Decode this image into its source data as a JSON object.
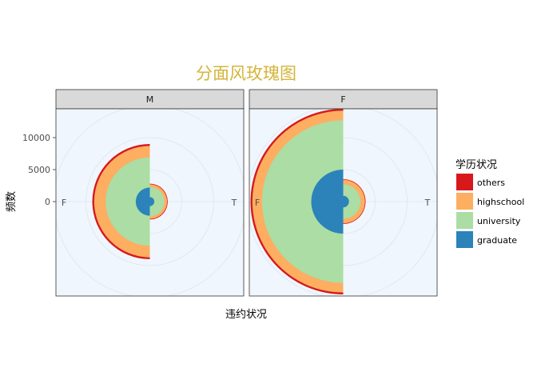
{
  "chart_data": {
    "type": "rose",
    "title": "分面风玫瑰图",
    "xlabel": "违约状况",
    "ylabel": "频数",
    "y_ticks": [
      0,
      5000,
      10000
    ],
    "x_categories": [
      "F",
      "T"
    ],
    "facets": [
      "M",
      "F"
    ],
    "legend": {
      "title": "学历状况",
      "position": "right",
      "entries": [
        "others",
        "highschool",
        "university",
        "graduate"
      ]
    },
    "series_colors": {
      "others": "#d7191c",
      "highschool": "#fdae61",
      "university": "#abdda4",
      "graduate": "#2b83ba"
    },
    "data": {
      "M": {
        "F": {
          "graduate": 2200,
          "university": 6900,
          "highschool": 8700,
          "others": 9000
        },
        "T": {
          "graduate": 700,
          "university": 2300,
          "highschool": 2700,
          "others": 2800
        }
      },
      "F": {
        "F": {
          "graduate": 5000,
          "university": 12700,
          "highschool": 14200,
          "others": 14500
        },
        "T": {
          "graduate": 900,
          "university": 2700,
          "highschool": 3400,
          "others": 3500
        }
      }
    },
    "grid": true,
    "panel_background": "#f0f6fd",
    "strip_background": "#d9d9d9",
    "title_color": "#d4b53a"
  }
}
